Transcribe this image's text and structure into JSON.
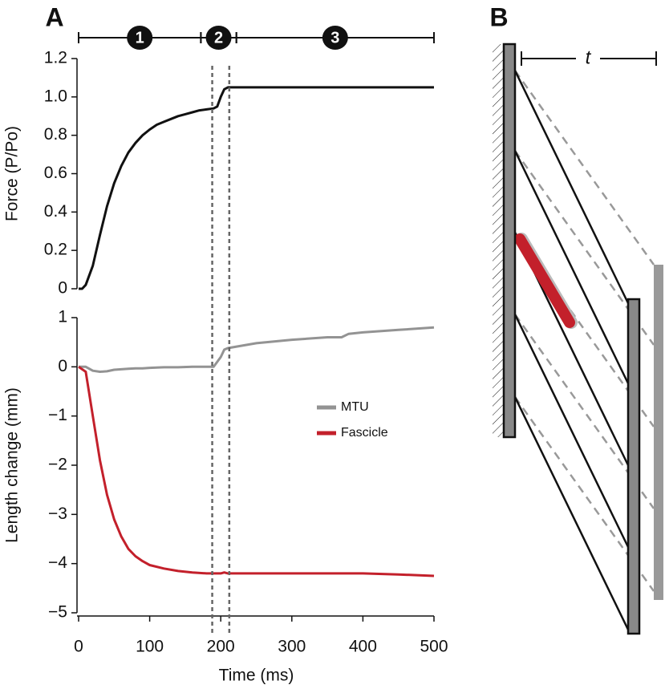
{
  "panel_labels": [
    "A",
    "B"
  ],
  "phases": [
    {
      "label": "1",
      "start": 0,
      "end": 172
    },
    {
      "label": "2",
      "start": 172,
      "end": 222
    },
    {
      "label": "3",
      "start": 222,
      "end": 500
    }
  ],
  "markers": [
    188,
    212
  ],
  "diagram": {
    "label": "t"
  },
  "chart_data": [
    {
      "type": "line",
      "ylabel": "Force (P/Po)",
      "x": [
        0,
        5,
        10,
        20,
        30,
        40,
        50,
        60,
        70,
        80,
        90,
        100,
        110,
        120,
        130,
        140,
        150,
        160,
        170,
        180,
        190,
        195,
        200,
        205,
        210,
        250,
        300,
        350,
        400,
        450,
        500
      ],
      "values": [
        0,
        0,
        0.02,
        0.12,
        0.28,
        0.43,
        0.55,
        0.64,
        0.71,
        0.76,
        0.8,
        0.83,
        0.855,
        0.87,
        0.885,
        0.9,
        0.91,
        0.92,
        0.93,
        0.935,
        0.94,
        0.95,
        1.0,
        1.04,
        1.05,
        1.05,
        1.05,
        1.05,
        1.05,
        1.05,
        1.05
      ],
      "color": "#111111",
      "xlim": [
        0,
        500
      ],
      "ylim": [
        0,
        1.2
      ],
      "yticks": [
        0,
        0.2,
        0.4,
        0.6,
        0.8,
        {
          "value": 1,
          "label": "1.0"
        },
        1.2
      ]
    },
    {
      "type": "line",
      "ylabel": "Length change (mm)",
      "xlabel": "Time (ms)",
      "x": [
        0,
        10,
        20,
        30,
        40,
        50,
        60,
        70,
        80,
        90,
        100,
        120,
        140,
        160,
        180,
        190,
        200,
        205,
        210,
        250,
        300,
        350,
        370,
        380,
        400,
        450,
        500
      ],
      "series": [
        {
          "name": "MTU",
          "color": "#939393",
          "values": [
            0,
            0,
            -0.08,
            -0.1,
            -0.09,
            -0.06,
            -0.05,
            -0.04,
            -0.03,
            -0.03,
            -0.02,
            -0.01,
            -0.01,
            0,
            0,
            0,
            0.2,
            0.35,
            0.38,
            0.48,
            0.55,
            0.6,
            0.6,
            0.67,
            0.7,
            0.75,
            0.8
          ]
        },
        {
          "name": "Fascicle",
          "color": "#c3202b",
          "values": [
            0,
            -0.1,
            -1.0,
            -1.9,
            -2.6,
            -3.1,
            -3.45,
            -3.7,
            -3.85,
            -3.95,
            -4.03,
            -4.1,
            -4.15,
            -4.18,
            -4.2,
            -4.2,
            -4.2,
            -4.18,
            -4.2,
            -4.2,
            -4.2,
            -4.2,
            -4.2,
            -4.2,
            -4.2,
            -4.22,
            -4.25
          ]
        }
      ],
      "xlim": [
        0,
        500
      ],
      "ylim": [
        -5,
        1
      ],
      "xticks": [
        0,
        100,
        200,
        300,
        400,
        500
      ],
      "yticks": [
        {
          "value": -5,
          "label": "−5"
        },
        {
          "value": -4,
          "label": "−4"
        },
        {
          "value": -3,
          "label": "−3"
        },
        {
          "value": -2,
          "label": "−2"
        },
        {
          "value": -1,
          "label": "−1"
        },
        0,
        1
      ],
      "legend": "right"
    }
  ]
}
